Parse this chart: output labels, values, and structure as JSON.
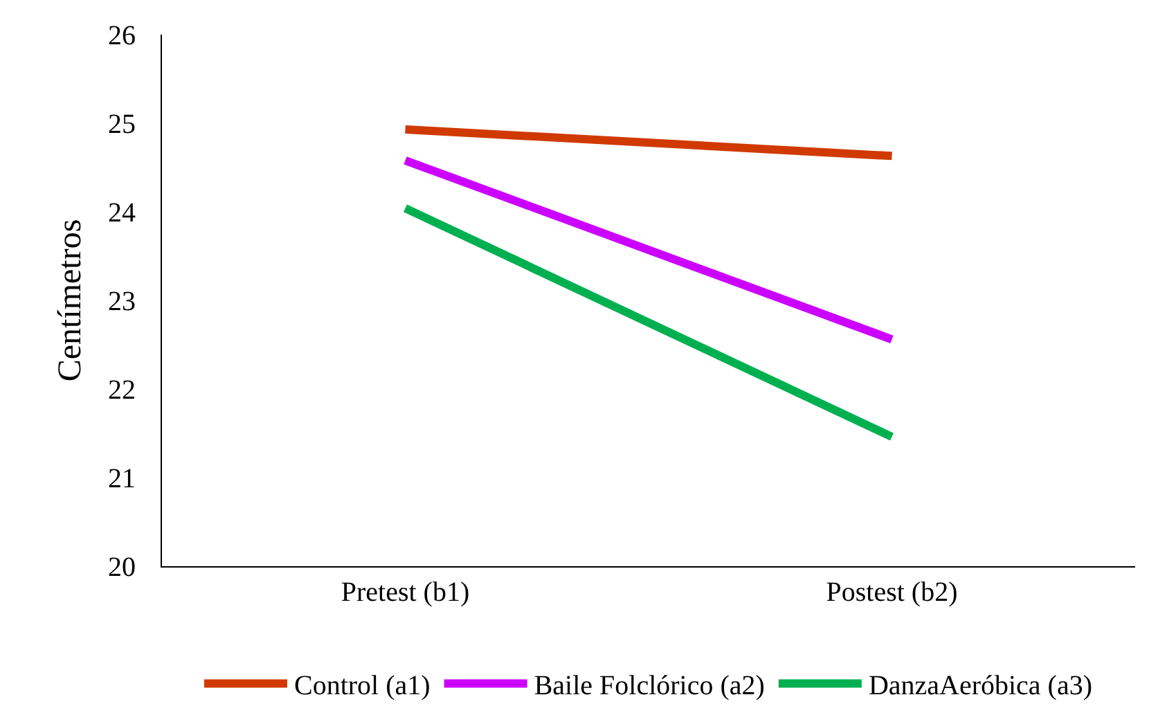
{
  "chart_data": {
    "type": "line",
    "ylabel": "Centímetros",
    "categories": [
      "Pretest (b1)",
      "Postest (b2)"
    ],
    "series": [
      {
        "name": "Control (a1)",
        "color": "#d03a00",
        "values": [
          24.93,
          24.63
        ]
      },
      {
        "name": "Baile Folclórico (a2)",
        "color": "#cc00ff",
        "values": [
          24.58,
          22.56
        ]
      },
      {
        "name": "DanzaAeróbica (a3)",
        "color": "#00b050",
        "values": [
          24.04,
          21.46
        ]
      }
    ],
    "ylim": [
      20,
      26
    ],
    "yticks": [
      20,
      21,
      22,
      23,
      24,
      25,
      26
    ],
    "grid": false,
    "legend": "bottom",
    "marker": "none",
    "line_style": "solid"
  }
}
